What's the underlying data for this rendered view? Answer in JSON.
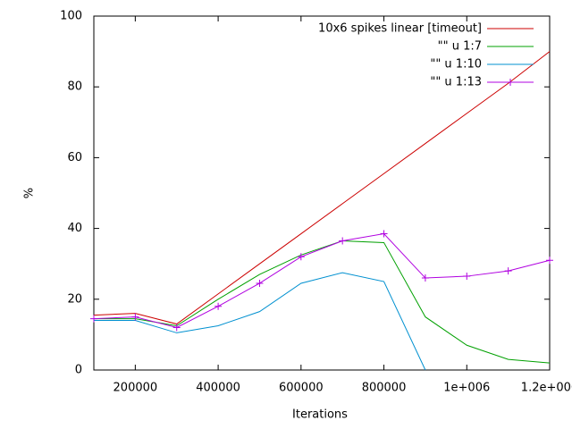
{
  "chart_data": {
    "type": "line",
    "x_label": "Iterations",
    "y_label": "%",
    "x": [
      100000,
      200000,
      300000,
      400000,
      500000,
      600000,
      700000,
      800000,
      900000,
      1000000,
      1100000,
      1200000
    ],
    "series": [
      {
        "name": "10x6 spikes linear [timeout]",
        "color": "#cc0000",
        "values": [
          15.5,
          16,
          13,
          21.5,
          30,
          38.5,
          47,
          55.5,
          64,
          72.5,
          81,
          90
        ]
      },
      {
        "name": "\"\" u 1:7",
        "color": "#00a000",
        "values": [
          14.5,
          14.5,
          12.5,
          20,
          27,
          32.5,
          36.5,
          36,
          15,
          7,
          3,
          2
        ]
      },
      {
        "name": "\"\" u 1:10",
        "color": "#0090d0",
        "values": [
          14,
          14,
          10.5,
          12.5,
          16.5,
          24.5,
          27.5,
          25,
          0,
          null,
          null,
          null
        ]
      },
      {
        "name": "\"\" u 1:13",
        "color": "#b000e0",
        "marker": "+",
        "values": [
          14.5,
          15,
          12,
          18,
          24.5,
          32,
          36.5,
          38.5,
          26,
          26.5,
          28,
          31
        ]
      }
    ],
    "xlim": [
      100000,
      1200000
    ],
    "xticks": [
      200000,
      400000,
      600000,
      800000,
      {
        "value": 1000000,
        "label": "1e+006"
      },
      {
        "value": 1200000,
        "label": "1.2e+006"
      }
    ],
    "ylim": [
      0,
      100
    ],
    "yticks": [
      0,
      20,
      40,
      60,
      80,
      100
    ],
    "grid": false,
    "legend": "top-right"
  }
}
